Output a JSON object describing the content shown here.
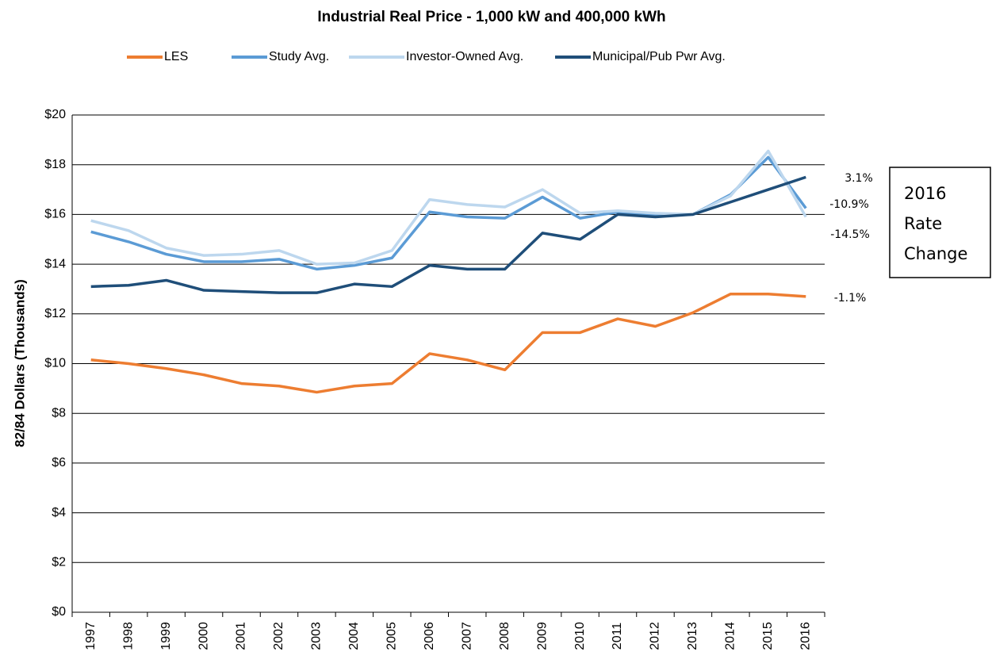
{
  "chart_data": {
    "type": "line",
    "title": "Industrial Real Price - 1,000 kW and  400,000 kWh",
    "y_label": "82/84 Dollars (Thousands)",
    "categories": [
      "1997",
      "1998",
      "1999",
      "2000",
      "2001",
      "2002",
      "2003",
      "2004",
      "2005",
      "2006",
      "2007",
      "2008",
      "2009",
      "2010",
      "2011",
      "2012",
      "2013",
      "2014",
      "2015",
      "2016"
    ],
    "series": [
      {
        "name": "LES",
        "color": "#ed7d31",
        "values": [
          10.15,
          10.0,
          9.8,
          9.55,
          9.2,
          9.1,
          8.85,
          9.1,
          9.2,
          10.4,
          10.15,
          9.75,
          11.25,
          11.25,
          11.8,
          11.5,
          12.05,
          12.8,
          12.8,
          12.7
        ]
      },
      {
        "name": "Study Avg.",
        "color": "#5b9bd5",
        "values": [
          15.3,
          14.9,
          14.4,
          14.1,
          14.1,
          14.2,
          13.8,
          13.95,
          14.25,
          16.1,
          15.9,
          15.85,
          16.7,
          15.85,
          16.1,
          15.95,
          16.0,
          16.8,
          18.3,
          16.25
        ]
      },
      {
        "name": "Investor-Owned Avg.",
        "color": "#bdd7ee",
        "values": [
          15.75,
          15.35,
          14.65,
          14.35,
          14.4,
          14.55,
          14.0,
          14.05,
          14.55,
          16.6,
          16.4,
          16.3,
          17.0,
          16.05,
          16.15,
          16.05,
          16.0,
          16.75,
          18.55,
          15.9
        ]
      },
      {
        "name": "Municipal/Pub Pwr Avg.",
        "color": "#1f4e79",
        "values": [
          13.1,
          13.15,
          13.35,
          12.95,
          12.9,
          12.85,
          12.85,
          13.2,
          13.1,
          13.95,
          13.8,
          13.8,
          15.25,
          15.0,
          16.0,
          15.9,
          16.0,
          16.5,
          17.0,
          17.5
        ]
      }
    ],
    "ylim": [
      0,
      20
    ],
    "yticks": [
      {
        "value": 0,
        "label": "$0"
      },
      {
        "value": 2,
        "label": "$2"
      },
      {
        "value": 4,
        "label": "$4"
      },
      {
        "value": 6,
        "label": "$6"
      },
      {
        "value": 8,
        "label": "$8"
      },
      {
        "value": 10,
        "label": "$10"
      },
      {
        "value": 12,
        "label": "$12"
      },
      {
        "value": 14,
        "label": "$14"
      },
      {
        "value": 16,
        "label": "$16"
      },
      {
        "value": 18,
        "label": "$18"
      },
      {
        "value": 20,
        "label": "$20"
      }
    ],
    "grid": true,
    "legend": "top",
    "annotations": [
      "3.1%",
      "-10.9%",
      "-14.5%",
      "-1.1%"
    ],
    "box_text": [
      "2016",
      "Rate",
      "Change"
    ]
  }
}
